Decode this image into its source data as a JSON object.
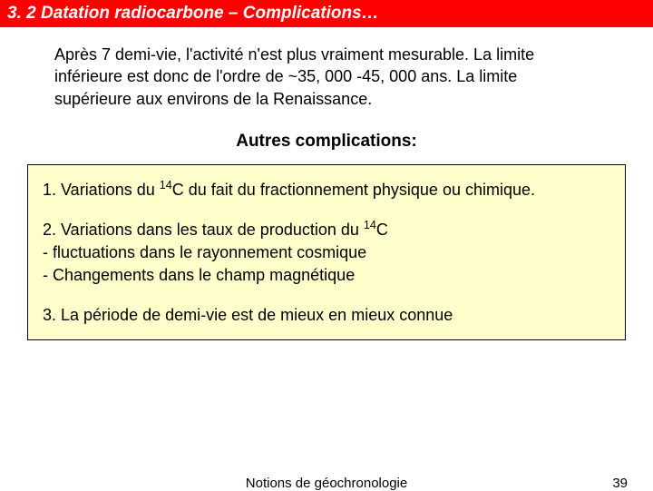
{
  "header": {
    "title": "3. 2 Datation radiocarbone – Complications…",
    "bg_color": "#ff0000",
    "text_color": "#ffffff"
  },
  "intro": {
    "text": "Après 7 demi-vie, l'activité n'est plus vraiment mesurable. La limite inférieure est donc de l'ordre de  ~35, 000 -45, 000 ans. La limite supérieure aux environs de la Renaissance."
  },
  "subtitle": "Autres complications:",
  "box": {
    "bg_color": "#ffffcc",
    "items": [
      {
        "prefix": "1. Variations du ",
        "sup": "14",
        "suffix": "C du fait du fractionnement physique ou chimique."
      },
      {
        "prefix": "2. Variations dans les taux de production du ",
        "sup": "14",
        "suffix": "C",
        "lines": [
          "- fluctuations dans le rayonnement cosmique",
          "- Changements dans le champ magnétique"
        ]
      },
      {
        "prefix": "3. La période de demi-vie est de mieux en mieux connue",
        "sup": "",
        "suffix": ""
      }
    ]
  },
  "footer": {
    "text": "Notions de géochronologie",
    "page": "39"
  }
}
